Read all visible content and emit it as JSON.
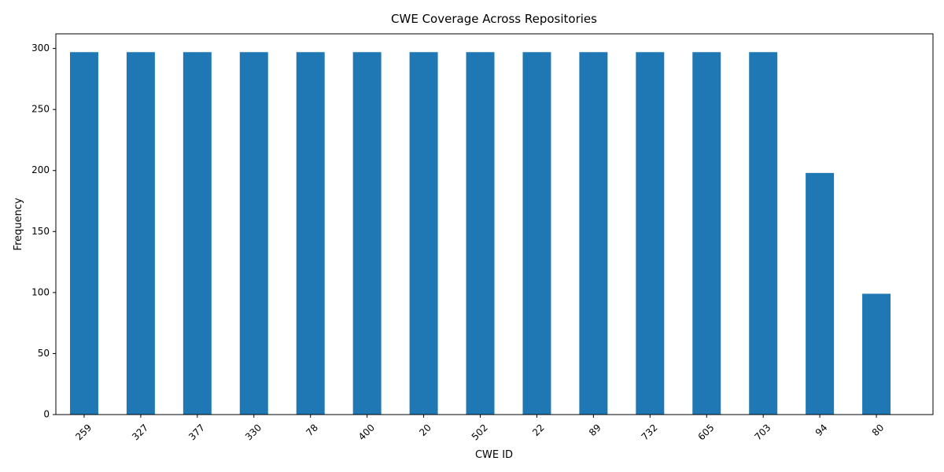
{
  "chart_data": {
    "type": "bar",
    "title": "CWE Coverage Across Repositories",
    "xlabel": "CWE ID",
    "ylabel": "Frequency",
    "categories": [
      "259",
      "327",
      "377",
      "330",
      "78",
      "400",
      "20",
      "502",
      "22",
      "89",
      "732",
      "605",
      "703",
      "94",
      "80"
    ],
    "values": [
      297,
      297,
      297,
      297,
      297,
      297,
      297,
      297,
      297,
      297,
      297,
      297,
      297,
      198,
      99
    ],
    "ylim": [
      0,
      312
    ],
    "yticks": [
      0,
      50,
      100,
      150,
      200,
      250,
      300
    ],
    "bar_color": "#1f77b4",
    "grid": false,
    "legend": "none"
  }
}
